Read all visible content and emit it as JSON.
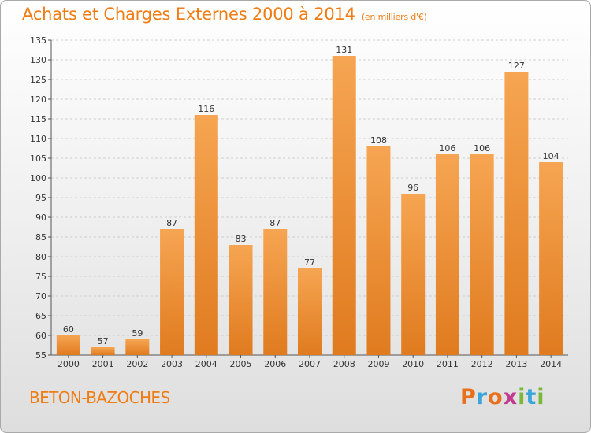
{
  "chart_data": {
    "type": "bar",
    "title": "Achats et Charges Externes 2000 à 2014",
    "subtitle": "(en milliers d'€)",
    "categories": [
      "2000",
      "2001",
      "2002",
      "2003",
      "2004",
      "2005",
      "2006",
      "2007",
      "2008",
      "2009",
      "2010",
      "2011",
      "2012",
      "2013",
      "2014"
    ],
    "values": [
      60,
      57,
      59,
      87,
      116,
      83,
      87,
      77,
      131,
      108,
      96,
      106,
      106,
      127,
      104
    ],
    "ylim": [
      55,
      135
    ],
    "yticks": [
      55,
      60,
      65,
      70,
      75,
      80,
      85,
      90,
      95,
      100,
      105,
      110,
      115,
      120,
      125,
      130,
      135
    ],
    "grid": true,
    "xlabel": "",
    "ylabel": "",
    "bar_color": "#f29b3c"
  },
  "location": "BETON-BAZOCHES",
  "brand": "Proxiti",
  "colors": {
    "accent": "#f07d14",
    "bar_light": "#f6a552",
    "bar_dark": "#e07b1f",
    "logo_letters": [
      "#e8701a",
      "#3aa5db",
      "#e8701a",
      "#c23b8e",
      "#7ab83a",
      "#3aa5db",
      "#7ab83a"
    ]
  }
}
